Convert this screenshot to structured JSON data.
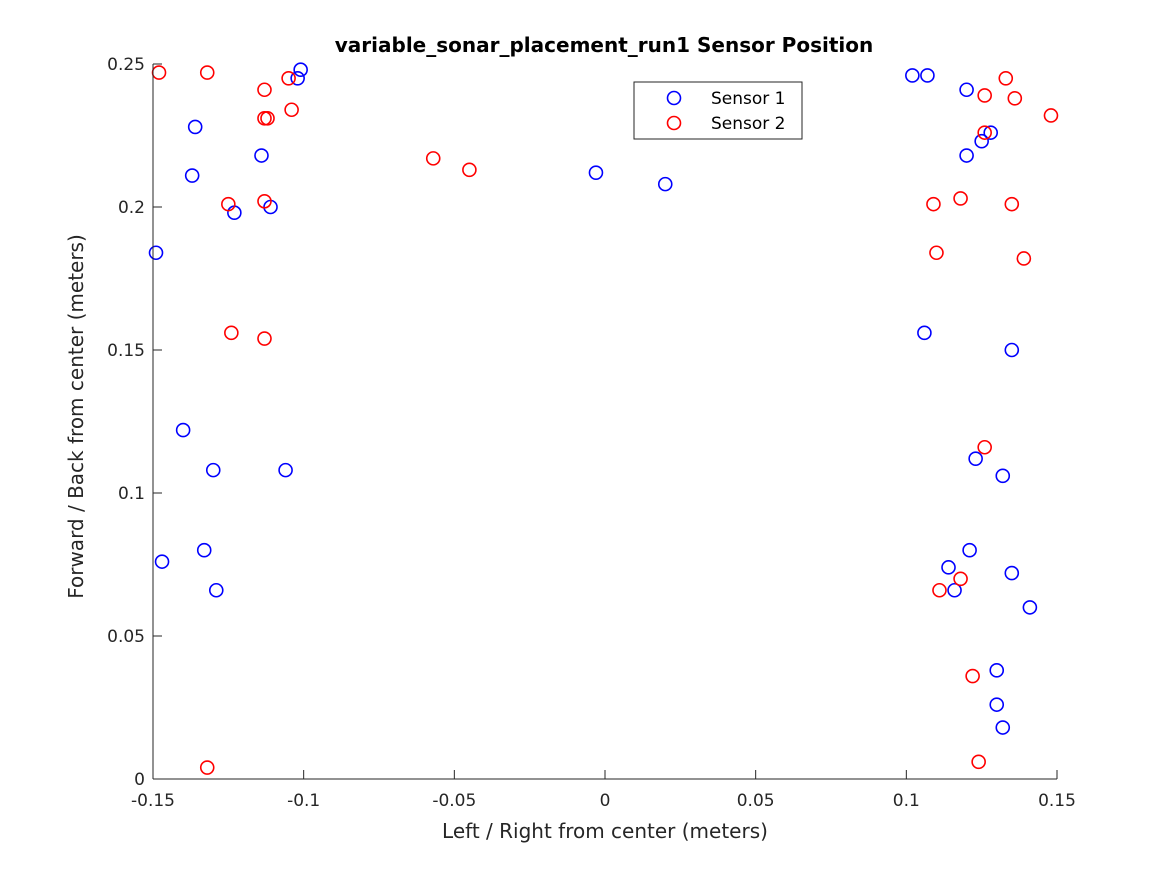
{
  "chart_data": {
    "type": "scatter",
    "title": "variable_sonar_placement_run1 Sensor Position",
    "xlabel": "Left / Right from center (meters)",
    "ylabel": "Forward / Back from center (meters)",
    "xlim": [
      -0.15,
      0.15
    ],
    "ylim": [
      0,
      0.25
    ],
    "x_ticks": [
      "-0.15",
      "-0.1",
      "-0.05",
      "0",
      "0.05",
      "0.1",
      "0.15"
    ],
    "y_ticks": [
      "0",
      "0.05",
      "0.1",
      "0.15",
      "0.2",
      "0.25"
    ],
    "grid": false,
    "legend_position": "top-right",
    "series": [
      {
        "name": "Sensor 1",
        "color": "#0000ff",
        "marker": "circle-open",
        "points": [
          [
            -0.101,
            0.248
          ],
          [
            -0.102,
            0.245
          ],
          [
            -0.136,
            0.228
          ],
          [
            -0.114,
            0.218
          ],
          [
            -0.137,
            0.211
          ],
          [
            -0.111,
            0.2
          ],
          [
            -0.123,
            0.198
          ],
          [
            -0.149,
            0.184
          ],
          [
            -0.14,
            0.122
          ],
          [
            -0.13,
            0.108
          ],
          [
            -0.106,
            0.108
          ],
          [
            -0.133,
            0.08
          ],
          [
            -0.147,
            0.076
          ],
          [
            -0.129,
            0.066
          ],
          [
            -0.003,
            0.212
          ],
          [
            0.02,
            0.208
          ],
          [
            0.102,
            0.246
          ],
          [
            0.107,
            0.246
          ],
          [
            0.12,
            0.241
          ],
          [
            0.128,
            0.226
          ],
          [
            0.125,
            0.223
          ],
          [
            0.12,
            0.218
          ],
          [
            0.106,
            0.156
          ],
          [
            0.135,
            0.15
          ],
          [
            0.123,
            0.112
          ],
          [
            0.132,
            0.106
          ],
          [
            0.121,
            0.08
          ],
          [
            0.114,
            0.074
          ],
          [
            0.135,
            0.072
          ],
          [
            0.116,
            0.066
          ],
          [
            0.141,
            0.06
          ],
          [
            0.13,
            0.038
          ],
          [
            0.13,
            0.026
          ],
          [
            0.132,
            0.018
          ]
        ]
      },
      {
        "name": "Sensor 2",
        "color": "#ff0000",
        "marker": "circle-open",
        "points": [
          [
            -0.148,
            0.247
          ],
          [
            -0.132,
            0.247
          ],
          [
            -0.105,
            0.245
          ],
          [
            -0.113,
            0.241
          ],
          [
            -0.104,
            0.234
          ],
          [
            -0.113,
            0.231
          ],
          [
            -0.112,
            0.231
          ],
          [
            -0.057,
            0.217
          ],
          [
            -0.045,
            0.213
          ],
          [
            -0.125,
            0.201
          ],
          [
            -0.113,
            0.202
          ],
          [
            -0.124,
            0.156
          ],
          [
            -0.113,
            0.154
          ],
          [
            -0.132,
            0.004
          ],
          [
            0.133,
            0.245
          ],
          [
            0.126,
            0.239
          ],
          [
            0.136,
            0.238
          ],
          [
            0.148,
            0.232
          ],
          [
            0.126,
            0.226
          ],
          [
            0.109,
            0.201
          ],
          [
            0.118,
            0.203
          ],
          [
            0.135,
            0.201
          ],
          [
            0.11,
            0.184
          ],
          [
            0.139,
            0.182
          ],
          [
            0.126,
            0.116
          ],
          [
            0.118,
            0.07
          ],
          [
            0.111,
            0.066
          ],
          [
            0.122,
            0.036
          ],
          [
            0.124,
            0.006
          ]
        ]
      }
    ]
  }
}
